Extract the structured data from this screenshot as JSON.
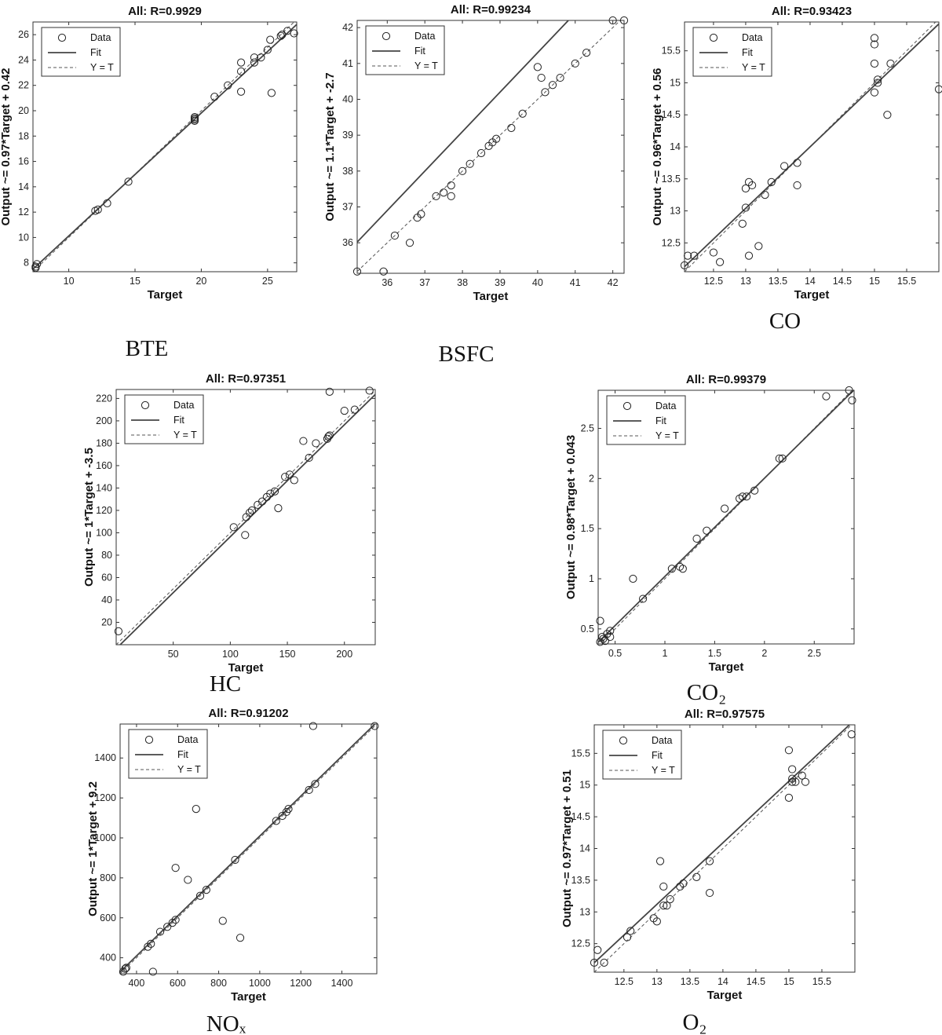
{
  "chart_data": [
    {
      "type": "scatter",
      "title": "All: R=0.9929",
      "xlabel": "Target",
      "ylabel": "Output ~= 0.97*Target + 0.42",
      "caption": "BTE",
      "xlim": [
        7.3,
        27.2
      ],
      "ylim": [
        7.3,
        27.0
      ],
      "xticks": [
        10,
        15,
        20,
        25
      ],
      "yticks": [
        8,
        10,
        12,
        14,
        16,
        18,
        20,
        22,
        24,
        26
      ],
      "fit": {
        "slope": 0.97,
        "intercept": 0.42
      },
      "legend": {
        "position": "top-left",
        "entries": [
          "Data",
          "Fit",
          "Y = T"
        ]
      },
      "points": [
        [
          7.5,
          7.6
        ],
        [
          7.5,
          7.7
        ],
        [
          7.6,
          7.9
        ],
        [
          12.0,
          12.1
        ],
        [
          12.2,
          12.2
        ],
        [
          12.9,
          12.7
        ],
        [
          14.5,
          14.4
        ],
        [
          19.5,
          19.2
        ],
        [
          19.5,
          19.3
        ],
        [
          19.5,
          19.4
        ],
        [
          19.5,
          19.5
        ],
        [
          21.0,
          21.1
        ],
        [
          22.0,
          22.0
        ],
        [
          23.0,
          21.5
        ],
        [
          23.0,
          23.1
        ],
        [
          23.0,
          23.8
        ],
        [
          24.0,
          23.8
        ],
        [
          24.0,
          24.2
        ],
        [
          24.5,
          24.2
        ],
        [
          25.0,
          24.8
        ],
        [
          25.2,
          25.6
        ],
        [
          25.3,
          21.4
        ],
        [
          26.0,
          25.9
        ],
        [
          26.1,
          26.0
        ],
        [
          26.5,
          26.3
        ],
        [
          27.0,
          26.1
        ]
      ]
    },
    {
      "type": "scatter",
      "title": "All: R=0.99234",
      "xlabel": "Target",
      "ylabel": "Output ~= 1.1*Target + -2.7",
      "caption": "BSFC",
      "xlim": [
        35.2,
        42.3
      ],
      "ylim": [
        35.15,
        42.2
      ],
      "xticks": [
        36,
        37,
        38,
        39,
        40,
        41,
        42
      ],
      "yticks": [
        36,
        37,
        38,
        39,
        40,
        41,
        42
      ],
      "fit": {
        "slope": 1.1,
        "intercept": -2.7
      },
      "legend": {
        "position": "top-left",
        "entries": [
          "Data",
          "Fit",
          "Y = T"
        ]
      },
      "points": [
        [
          35.2,
          35.2
        ],
        [
          35.9,
          35.2
        ],
        [
          36.2,
          36.2
        ],
        [
          36.6,
          36.0
        ],
        [
          36.8,
          36.7
        ],
        [
          36.9,
          36.8
        ],
        [
          37.3,
          37.3
        ],
        [
          37.5,
          37.4
        ],
        [
          37.7,
          37.3
        ],
        [
          37.7,
          37.6
        ],
        [
          38.0,
          38.0
        ],
        [
          38.2,
          38.2
        ],
        [
          38.5,
          38.5
        ],
        [
          38.7,
          38.7
        ],
        [
          38.8,
          38.8
        ],
        [
          38.9,
          38.9
        ],
        [
          39.3,
          39.2
        ],
        [
          39.6,
          39.6
        ],
        [
          40.0,
          40.9
        ],
        [
          40.1,
          40.6
        ],
        [
          40.2,
          40.2
        ],
        [
          40.4,
          40.4
        ],
        [
          40.6,
          40.6
        ],
        [
          41.0,
          41.0
        ],
        [
          41.3,
          41.3
        ],
        [
          42.0,
          42.2
        ],
        [
          42.3,
          42.2
        ]
      ]
    },
    {
      "type": "scatter",
      "title": "All: R=0.93423",
      "xlabel": "Target",
      "ylabel": "Output ~= 0.96*Target + 0.56",
      "caption": "CO",
      "xlim": [
        12.05,
        16.0
      ],
      "ylim": [
        12.05,
        15.95
      ],
      "xticks": [
        12.5,
        13,
        13.5,
        14,
        14.5,
        15,
        15.5
      ],
      "yticks": [
        12.5,
        13,
        13.5,
        14,
        14.5,
        15,
        15.5
      ],
      "fit": {
        "slope": 0.96,
        "intercept": 0.56
      },
      "legend": {
        "position": "top-left",
        "entries": [
          "Data",
          "Fit",
          "Y = T"
        ]
      },
      "points": [
        [
          12.05,
          12.15
        ],
        [
          12.1,
          12.3
        ],
        [
          12.2,
          12.3
        ],
        [
          12.5,
          12.35
        ],
        [
          12.6,
          12.2
        ],
        [
          12.95,
          12.8
        ],
        [
          13.0,
          13.05
        ],
        [
          13.0,
          13.35
        ],
        [
          13.05,
          12.3
        ],
        [
          13.05,
          13.45
        ],
        [
          13.1,
          13.4
        ],
        [
          13.2,
          12.45
        ],
        [
          13.3,
          13.25
        ],
        [
          13.4,
          13.45
        ],
        [
          13.6,
          13.7
        ],
        [
          13.8,
          13.4
        ],
        [
          13.8,
          13.75
        ],
        [
          15.0,
          14.85
        ],
        [
          15.0,
          15.7
        ],
        [
          15.0,
          15.3
        ],
        [
          15.0,
          15.6
        ],
        [
          15.05,
          15.0
        ],
        [
          15.05,
          15.05
        ],
        [
          15.2,
          14.5
        ],
        [
          15.25,
          15.3
        ],
        [
          16.0,
          14.9
        ]
      ]
    },
    {
      "type": "scatter",
      "title": "All: R=0.97351",
      "xlabel": "Target",
      "ylabel": "Output ~= 1*Target + -3.5",
      "caption": "HC",
      "xlim": [
        0,
        227
      ],
      "ylim": [
        0,
        228
      ],
      "xticks": [
        50,
        100,
        150,
        200
      ],
      "yticks": [
        20,
        40,
        60,
        80,
        100,
        120,
        140,
        160,
        180,
        200,
        220
      ],
      "fit": {
        "slope": 1.0,
        "intercept": -3.5
      },
      "legend": {
        "position": "top-left",
        "entries": [
          "Data",
          "Fit",
          "Y = T"
        ]
      },
      "points": [
        [
          2,
          12
        ],
        [
          103,
          105
        ],
        [
          113,
          98
        ],
        [
          114,
          114
        ],
        [
          117,
          118
        ],
        [
          119,
          120
        ],
        [
          124,
          125
        ],
        [
          128,
          128
        ],
        [
          132,
          132
        ],
        [
          135,
          135
        ],
        [
          139,
          137
        ],
        [
          142,
          122
        ],
        [
          148,
          150
        ],
        [
          152,
          152
        ],
        [
          156,
          147
        ],
        [
          164,
          182
        ],
        [
          169,
          167
        ],
        [
          175,
          180
        ],
        [
          185,
          184
        ],
        [
          186,
          186
        ],
        [
          187,
          187
        ],
        [
          187,
          226
        ],
        [
          200,
          209
        ],
        [
          209,
          210
        ],
        [
          222,
          227
        ]
      ]
    },
    {
      "type": "scatter",
      "title": "All: R=0.99379",
      "xlabel": "Target",
      "ylabel": "Output ~= 0.98*Target + 0.043",
      "caption": "CO₂",
      "xlim": [
        0.33,
        2.9
      ],
      "ylim": [
        0.35,
        2.88
      ],
      "xticks": [
        0.5,
        1,
        1.5,
        2,
        2.5
      ],
      "yticks": [
        0.5,
        1,
        1.5,
        2,
        2.5
      ],
      "fit": {
        "slope": 0.98,
        "intercept": 0.043
      },
      "legend": {
        "position": "top-left",
        "entries": [
          "Data",
          "Fit",
          "Y = T"
        ]
      },
      "points": [
        [
          0.35,
          0.37
        ],
        [
          0.35,
          0.58
        ],
        [
          0.37,
          0.42
        ],
        [
          0.38,
          0.4
        ],
        [
          0.4,
          0.38
        ],
        [
          0.42,
          0.45
        ],
        [
          0.45,
          0.42
        ],
        [
          0.45,
          0.48
        ],
        [
          0.68,
          1.0
        ],
        [
          0.78,
          0.8
        ],
        [
          1.07,
          1.1
        ],
        [
          1.15,
          1.12
        ],
        [
          1.18,
          1.1
        ],
        [
          1.32,
          1.4
        ],
        [
          1.42,
          1.48
        ],
        [
          1.6,
          1.7
        ],
        [
          1.75,
          1.8
        ],
        [
          1.78,
          1.82
        ],
        [
          1.82,
          1.82
        ],
        [
          1.9,
          1.88
        ],
        [
          2.15,
          2.2
        ],
        [
          2.18,
          2.2
        ],
        [
          2.62,
          2.82
        ],
        [
          2.85,
          2.88
        ],
        [
          2.88,
          2.78
        ]
      ]
    },
    {
      "type": "scatter",
      "title": "All: R=0.91202",
      "xlabel": "Target",
      "ylabel": "Output ~= 1*Target + 9.2",
      "caption": "NOₓ",
      "xlim": [
        320,
        1570
      ],
      "ylim": [
        320,
        1570
      ],
      "xticks": [
        400,
        600,
        800,
        1000,
        1200,
        1400
      ],
      "yticks": [
        400,
        600,
        800,
        1000,
        1200,
        1400
      ],
      "fit": {
        "slope": 1.0,
        "intercept": 9.2
      },
      "legend": {
        "position": "top-left",
        "entries": [
          "Data",
          "Fit",
          "Y = T"
        ]
      },
      "points": [
        [
          335,
          330
        ],
        [
          345,
          345
        ],
        [
          350,
          350
        ],
        [
          455,
          455
        ],
        [
          470,
          470
        ],
        [
          480,
          330
        ],
        [
          515,
          530
        ],
        [
          550,
          555
        ],
        [
          575,
          575
        ],
        [
          590,
          590
        ],
        [
          590,
          850
        ],
        [
          650,
          790
        ],
        [
          690,
          1145
        ],
        [
          710,
          710
        ],
        [
          740,
          740
        ],
        [
          820,
          585
        ],
        [
          880,
          890
        ],
        [
          905,
          500
        ],
        [
          1080,
          1085
        ],
        [
          1110,
          1110
        ],
        [
          1130,
          1130
        ],
        [
          1140,
          1145
        ],
        [
          1240,
          1240
        ],
        [
          1260,
          1560
        ],
        [
          1270,
          1270
        ],
        [
          1560,
          1560
        ]
      ]
    },
    {
      "type": "scatter",
      "title": "All: R=0.97575",
      "xlabel": "Target",
      "ylabel": "Output ~= 0.97*Target + 0.51",
      "caption": "O₂",
      "xlim": [
        12.05,
        16.0
      ],
      "ylim": [
        12.05,
        15.95
      ],
      "xticks": [
        12.5,
        13,
        13.5,
        14,
        14.5,
        15,
        15.5
      ],
      "yticks": [
        12.5,
        13,
        13.5,
        14,
        14.5,
        15,
        15.5
      ],
      "fit": {
        "slope": 0.97,
        "intercept": 0.51
      },
      "legend": {
        "position": "top-left",
        "entries": [
          "Data",
          "Fit",
          "Y = T"
        ]
      },
      "points": [
        [
          12.05,
          12.2
        ],
        [
          12.1,
          12.4
        ],
        [
          12.2,
          12.2
        ],
        [
          12.55,
          12.6
        ],
        [
          12.6,
          12.7
        ],
        [
          12.95,
          12.9
        ],
        [
          13.0,
          12.85
        ],
        [
          13.05,
          13.8
        ],
        [
          13.1,
          13.1
        ],
        [
          13.1,
          13.4
        ],
        [
          13.15,
          13.1
        ],
        [
          13.2,
          13.2
        ],
        [
          13.35,
          13.4
        ],
        [
          13.4,
          13.45
        ],
        [
          13.6,
          13.55
        ],
        [
          13.8,
          13.3
        ],
        [
          13.8,
          13.8
        ],
        [
          15.0,
          14.8
        ],
        [
          15.0,
          15.55
        ],
        [
          15.05,
          15.05
        ],
        [
          15.05,
          15.1
        ],
        [
          15.05,
          15.25
        ],
        [
          15.1,
          15.05
        ],
        [
          15.2,
          15.15
        ],
        [
          15.25,
          15.05
        ],
        [
          15.95,
          15.8
        ]
      ]
    }
  ]
}
